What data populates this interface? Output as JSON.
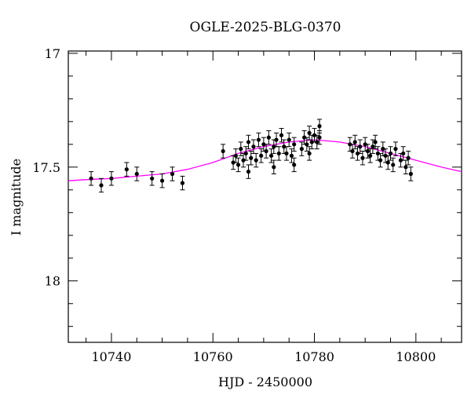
{
  "chart_data": {
    "type": "scatter",
    "title": "OGLE-2025-BLG-0370",
    "xlabel": "HJD - 2450000",
    "ylabel": "I magnitude",
    "xlim": [
      10731.5,
      10809
    ],
    "ylim": [
      18.27,
      16.99
    ],
    "y_inverted": true,
    "grid": false,
    "x_ticks": [
      10740,
      10760,
      10780,
      10800
    ],
    "y_ticks": [
      17,
      17.5,
      18
    ],
    "x_tick_labels": [
      "10740",
      "10760",
      "10780",
      "10800"
    ],
    "y_tick_labels": [
      "17",
      "17.5",
      "18"
    ],
    "marker_color": "#000000",
    "model_color": "#ff00ff",
    "points": [
      {
        "x": 10736.0,
        "y": 17.55,
        "err": 0.03
      },
      {
        "x": 10738.0,
        "y": 17.58,
        "err": 0.03
      },
      {
        "x": 10740.0,
        "y": 17.55,
        "err": 0.03
      },
      {
        "x": 10743.0,
        "y": 17.51,
        "err": 0.03
      },
      {
        "x": 10745.0,
        "y": 17.53,
        "err": 0.03
      },
      {
        "x": 10748.0,
        "y": 17.55,
        "err": 0.03
      },
      {
        "x": 10750.0,
        "y": 17.56,
        "err": 0.03
      },
      {
        "x": 10752.0,
        "y": 17.53,
        "err": 0.03
      },
      {
        "x": 10754.0,
        "y": 17.57,
        "err": 0.03
      },
      {
        "x": 10762.0,
        "y": 17.43,
        "err": 0.03
      },
      {
        "x": 10764.0,
        "y": 17.48,
        "err": 0.03
      },
      {
        "x": 10764.5,
        "y": 17.45,
        "err": 0.03
      },
      {
        "x": 10765.0,
        "y": 17.49,
        "err": 0.03
      },
      {
        "x": 10765.5,
        "y": 17.42,
        "err": 0.03
      },
      {
        "x": 10766.0,
        "y": 17.47,
        "err": 0.03
      },
      {
        "x": 10766.5,
        "y": 17.44,
        "err": 0.03
      },
      {
        "x": 10767.0,
        "y": 17.39,
        "err": 0.03
      },
      {
        "x": 10767.0,
        "y": 17.52,
        "err": 0.03
      },
      {
        "x": 10767.5,
        "y": 17.46,
        "err": 0.03
      },
      {
        "x": 10768.0,
        "y": 17.41,
        "err": 0.03
      },
      {
        "x": 10768.5,
        "y": 17.47,
        "err": 0.03
      },
      {
        "x": 10769.0,
        "y": 17.38,
        "err": 0.03
      },
      {
        "x": 10769.5,
        "y": 17.45,
        "err": 0.03
      },
      {
        "x": 10770.0,
        "y": 17.4,
        "err": 0.03
      },
      {
        "x": 10770.5,
        "y": 17.43,
        "err": 0.03
      },
      {
        "x": 10771.0,
        "y": 17.37,
        "err": 0.03
      },
      {
        "x": 10771.5,
        "y": 17.45,
        "err": 0.03
      },
      {
        "x": 10772.0,
        "y": 17.41,
        "err": 0.03
      },
      {
        "x": 10772.0,
        "y": 17.5,
        "err": 0.03
      },
      {
        "x": 10772.5,
        "y": 17.38,
        "err": 0.03
      },
      {
        "x": 10773.0,
        "y": 17.44,
        "err": 0.03
      },
      {
        "x": 10773.5,
        "y": 17.36,
        "err": 0.03
      },
      {
        "x": 10774.0,
        "y": 17.41,
        "err": 0.03
      },
      {
        "x": 10774.5,
        "y": 17.44,
        "err": 0.03
      },
      {
        "x": 10775.0,
        "y": 17.38,
        "err": 0.03
      },
      {
        "x": 10775.5,
        "y": 17.45,
        "err": 0.03
      },
      {
        "x": 10776.0,
        "y": 17.4,
        "err": 0.03
      },
      {
        "x": 10776.0,
        "y": 17.49,
        "err": 0.03
      },
      {
        "x": 10777.5,
        "y": 17.42,
        "err": 0.03
      },
      {
        "x": 10778.0,
        "y": 17.37,
        "err": 0.03
      },
      {
        "x": 10778.5,
        "y": 17.4,
        "err": 0.03
      },
      {
        "x": 10779.0,
        "y": 17.35,
        "err": 0.03
      },
      {
        "x": 10779.0,
        "y": 17.44,
        "err": 0.03
      },
      {
        "x": 10779.5,
        "y": 17.39,
        "err": 0.03
      },
      {
        "x": 10780.0,
        "y": 17.36,
        "err": 0.03
      },
      {
        "x": 10780.5,
        "y": 17.39,
        "err": 0.03
      },
      {
        "x": 10781.0,
        "y": 17.32,
        "err": 0.03
      },
      {
        "x": 10781.0,
        "y": 17.37,
        "err": 0.03
      },
      {
        "x": 10787.0,
        "y": 17.4,
        "err": 0.03
      },
      {
        "x": 10787.5,
        "y": 17.43,
        "err": 0.03
      },
      {
        "x": 10788.0,
        "y": 17.39,
        "err": 0.03
      },
      {
        "x": 10788.5,
        "y": 17.44,
        "err": 0.03
      },
      {
        "x": 10789.0,
        "y": 17.41,
        "err": 0.03
      },
      {
        "x": 10789.5,
        "y": 17.46,
        "err": 0.03
      },
      {
        "x": 10790.0,
        "y": 17.4,
        "err": 0.03
      },
      {
        "x": 10790.5,
        "y": 17.43,
        "err": 0.03
      },
      {
        "x": 10791.0,
        "y": 17.45,
        "err": 0.03
      },
      {
        "x": 10791.5,
        "y": 17.41,
        "err": 0.03
      },
      {
        "x": 10792.0,
        "y": 17.39,
        "err": 0.03
      },
      {
        "x": 10792.5,
        "y": 17.44,
        "err": 0.03
      },
      {
        "x": 10793.0,
        "y": 17.47,
        "err": 0.03
      },
      {
        "x": 10793.5,
        "y": 17.42,
        "err": 0.03
      },
      {
        "x": 10794.0,
        "y": 17.45,
        "err": 0.03
      },
      {
        "x": 10794.5,
        "y": 17.48,
        "err": 0.03
      },
      {
        "x": 10795.0,
        "y": 17.44,
        "err": 0.03
      },
      {
        "x": 10795.5,
        "y": 17.49,
        "err": 0.03
      },
      {
        "x": 10796.0,
        "y": 17.42,
        "err": 0.03
      },
      {
        "x": 10797.0,
        "y": 17.47,
        "err": 0.03
      },
      {
        "x": 10797.5,
        "y": 17.44,
        "err": 0.03
      },
      {
        "x": 10798.0,
        "y": 17.5,
        "err": 0.03
      },
      {
        "x": 10798.5,
        "y": 17.46,
        "err": 0.03
      },
      {
        "x": 10799.0,
        "y": 17.53,
        "err": 0.03
      }
    ],
    "model_curve": {
      "x": [
        10731.5,
        10735,
        10740,
        10745,
        10750,
        10755,
        10760,
        10765,
        10770,
        10775,
        10780,
        10785,
        10790,
        10795,
        10800,
        10805,
        10809
      ],
      "y": [
        17.56,
        17.555,
        17.55,
        17.54,
        17.53,
        17.51,
        17.48,
        17.44,
        17.41,
        17.39,
        17.38,
        17.39,
        17.41,
        17.44,
        17.47,
        17.5,
        17.52
      ]
    }
  }
}
